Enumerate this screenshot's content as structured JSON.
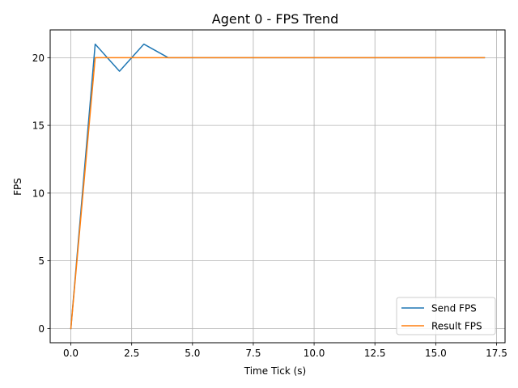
{
  "chart_data": {
    "type": "line",
    "title": "Agent 0 - FPS Trend",
    "xlabel": "Time Tick (s)",
    "ylabel": "FPS",
    "xlim": [
      -0.85,
      17.85
    ],
    "ylim": [
      -1.05,
      22.05
    ],
    "xticks": [
      0,
      2.5,
      5,
      7.5,
      10,
      12.5,
      15,
      17.5
    ],
    "xtick_labels": [
      "0.0",
      "2.5",
      "5.0",
      "7.5",
      "10.0",
      "12.5",
      "15.0",
      "17.5"
    ],
    "yticks": [
      0,
      5,
      10,
      15,
      20
    ],
    "ytick_labels": [
      "0",
      "5",
      "10",
      "15",
      "20"
    ],
    "grid": true,
    "legend_position": "lower-right",
    "series": [
      {
        "name": "Send FPS",
        "color": "#1f77b4",
        "x": [
          0,
          1,
          2,
          3,
          4,
          5,
          6,
          7,
          8,
          9,
          10,
          11,
          12,
          13,
          14,
          15,
          16,
          17
        ],
        "y": [
          0,
          21,
          19,
          21,
          20,
          20,
          20,
          20,
          20,
          20,
          20,
          20,
          20,
          20,
          20,
          20,
          20,
          20
        ]
      },
      {
        "name": "Result FPS",
        "color": "#ff7f0e",
        "x": [
          0,
          1,
          2,
          3,
          4,
          5,
          6,
          7,
          8,
          9,
          10,
          11,
          12,
          13,
          14,
          15,
          16,
          17
        ],
        "y": [
          0,
          20,
          20,
          20,
          20,
          20,
          20,
          20,
          20,
          20,
          20,
          20,
          20,
          20,
          20,
          20,
          20,
          20
        ]
      }
    ]
  }
}
